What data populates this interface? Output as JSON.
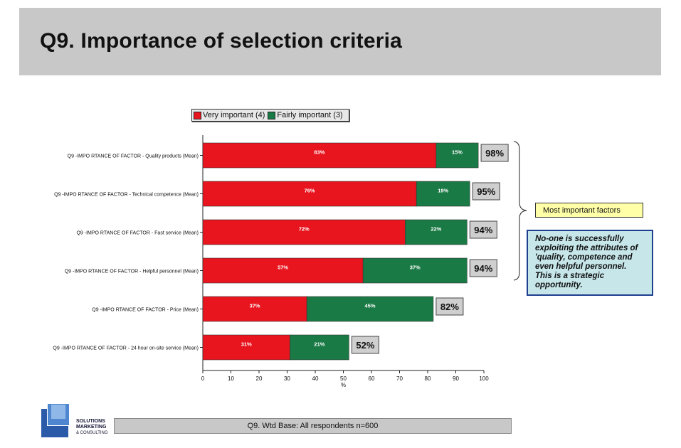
{
  "title": "Q9. Importance of selection criteria",
  "legend": [
    {
      "label": "Very important (4)",
      "color": "#e8141e"
    },
    {
      "label": "Fairly important (3)",
      "color": "#1a7a45"
    }
  ],
  "callouts": {
    "most_important": "Most important factors",
    "insight": "No-one is successfully exploiting the attributes of 'quality, competence and even helpful personnel. This is a strategic opportunity."
  },
  "footer": "Q9. Wtd Base: All respondents n=600",
  "logo": {
    "line1": "SOLUTIONS",
    "line2": "MARKETING",
    "line3": "& CONSULTING"
  },
  "chart_data": {
    "type": "bar",
    "orientation": "horizontal",
    "stacked": true,
    "categories": [
      "Q9 -IMPO RTANCE OF FACTOR - Quality products (Mean)",
      "Q9 -IMPO RTANCE OF FACTOR - Technical competence (Mean)",
      "Q9 -IMPO RTANCE OF FACTOR - Fast service (Mean)",
      "Q9 -IMPO RTANCE OF FACTOR - Helpful personnel (Mean)",
      "Q9 -IMPO RTANCE OF FACTOR - Price (Mean)",
      "Q9 -IMPO RTANCE OF FACTOR - 24 hour on-site service (Mean)"
    ],
    "series": [
      {
        "name": "Very important (4)",
        "color": "#e8141e",
        "values": [
          83,
          76,
          72,
          57,
          37,
          31
        ],
        "labels": [
          "83%",
          "76%",
          "72%",
          "57%",
          "37%",
          "31%"
        ]
      },
      {
        "name": "Fairly important (3)",
        "color": "#1a7a45",
        "values": [
          15,
          19,
          22,
          37,
          45,
          21
        ],
        "labels": [
          "15%",
          "19%",
          "22%",
          "37%",
          "45%",
          "21%"
        ]
      }
    ],
    "totals": [
      "98%",
      "95%",
      "94%",
      "94%",
      "82%",
      "52%"
    ],
    "xlabel": "%",
    "xlim": [
      0,
      100
    ],
    "xticks": [
      0,
      10,
      20,
      30,
      40,
      50,
      60,
      70,
      80,
      90,
      100
    ],
    "grid": false
  }
}
